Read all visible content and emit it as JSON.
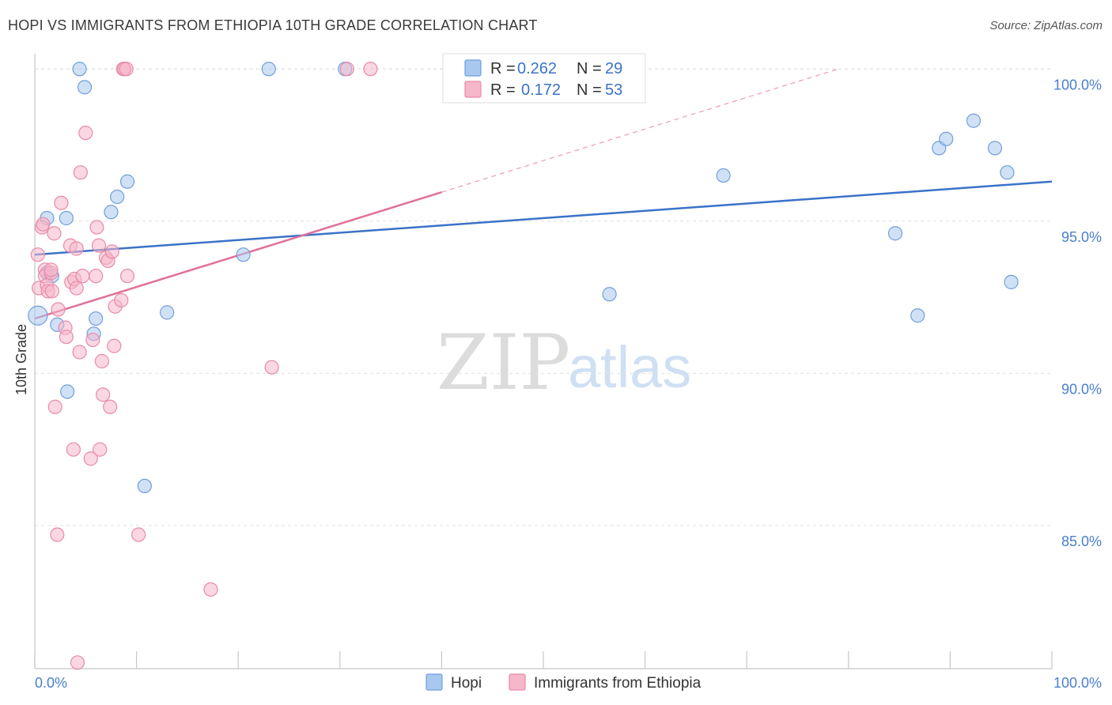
{
  "header": {
    "title": "HOPI VS IMMIGRANTS FROM ETHIOPIA 10TH GRADE CORRELATION CHART",
    "source": "Source: ZipAtlas.com"
  },
  "watermark": {
    "zip": "ZIP",
    "atlas": "atlas"
  },
  "legend_box": {
    "rows": [
      {
        "r_label": "R =",
        "r_value": "0.262",
        "n_label": "N =",
        "n_value": "29",
        "color": "#a9c8ef",
        "stroke": "#6f9fdc"
      },
      {
        "r_label": "R =",
        "r_value": "0.172",
        "n_label": "N =",
        "n_value": "53",
        "color": "#f6b7cb",
        "stroke": "#e98aa8"
      }
    ]
  },
  "bottom_legend": [
    {
      "label": "Hopi",
      "color": "#a9c8ef",
      "stroke": "#6f9fdc"
    },
    {
      "label": "Immigrants from Ethiopia",
      "color": "#f6b7cb",
      "stroke": "#e98aa8"
    }
  ],
  "chart_data": {
    "type": "scatter",
    "title": "HOPI VS IMMIGRANTS FROM ETHIOPIA 10TH GRADE CORRELATION CHART",
    "xlabel": "",
    "ylabel": "10th Grade",
    "xlim": [
      0,
      100
    ],
    "ylim": [
      80.3,
      100.5
    ],
    "x_tick_labels": [
      "0.0%",
      "100.0%"
    ],
    "y_ticks": [
      85,
      90,
      95,
      100
    ],
    "y_tick_labels": [
      "85.0%",
      "90.0%",
      "95.0%",
      "100.0%"
    ],
    "series": [
      {
        "name": "Hopi",
        "color": "#6f9fdc",
        "fill": "#a9c8ef",
        "line_color": "#3a72c8",
        "trend": {
          "x0": 0,
          "y0": 93.9,
          "x1": 100,
          "y1": 96.3,
          "solid_until": 100
        },
        "points": [
          [
            0.3,
            91.9
          ],
          [
            1.2,
            93.3
          ],
          [
            1.2,
            95.1
          ],
          [
            1.7,
            93.2
          ],
          [
            2.2,
            91.6
          ],
          [
            3.1,
            95.1
          ],
          [
            3.2,
            89.4
          ],
          [
            4.4,
            100.0
          ],
          [
            4.9,
            99.4
          ],
          [
            5.8,
            91.3
          ],
          [
            6.0,
            91.8
          ],
          [
            7.5,
            95.3
          ],
          [
            8.1,
            95.8
          ],
          [
            9.1,
            96.3
          ],
          [
            10.8,
            86.3
          ],
          [
            13.0,
            92.0
          ],
          [
            20.5,
            93.9
          ],
          [
            23.0,
            100.0
          ],
          [
            30.5,
            100.0
          ],
          [
            56.5,
            92.6
          ],
          [
            67.7,
            96.5
          ],
          [
            84.6,
            94.6
          ],
          [
            86.8,
            91.9
          ],
          [
            88.9,
            97.4
          ],
          [
            89.6,
            97.7
          ],
          [
            92.3,
            98.3
          ],
          [
            94.4,
            97.4
          ],
          [
            95.6,
            96.6
          ],
          [
            96.0,
            93.0
          ]
        ]
      },
      {
        "name": "Immigrants from Ethiopia",
        "color": "#e98aa8",
        "fill": "#f6b7cb",
        "line_color": "#e0709a",
        "trend": {
          "x0": 0,
          "y0": 91.8,
          "x1": 79.0,
          "y1": 100.0,
          "solid_until": 40.0
        },
        "points": [
          [
            0.3,
            93.9
          ],
          [
            0.4,
            92.8
          ],
          [
            0.7,
            94.8
          ],
          [
            0.8,
            94.9
          ],
          [
            1.0,
            93.4
          ],
          [
            1.0,
            93.2
          ],
          [
            1.2,
            92.9
          ],
          [
            1.3,
            92.7
          ],
          [
            1.6,
            93.3
          ],
          [
            1.7,
            92.7
          ],
          [
            1.9,
            94.6
          ],
          [
            2.0,
            88.9
          ],
          [
            2.2,
            84.7
          ],
          [
            2.3,
            92.1
          ],
          [
            2.6,
            95.6
          ],
          [
            3.0,
            91.5
          ],
          [
            3.1,
            91.2
          ],
          [
            3.5,
            94.2
          ],
          [
            3.6,
            93.0
          ],
          [
            3.8,
            87.5
          ],
          [
            3.9,
            93.1
          ],
          [
            4.1,
            94.1
          ],
          [
            4.1,
            92.8
          ],
          [
            4.2,
            80.5
          ],
          [
            4.4,
            90.7
          ],
          [
            4.5,
            96.6
          ],
          [
            4.7,
            93.2
          ],
          [
            5.0,
            97.9
          ],
          [
            5.5,
            87.2
          ],
          [
            5.7,
            91.1
          ],
          [
            6.0,
            93.2
          ],
          [
            6.1,
            94.8
          ],
          [
            6.3,
            94.2
          ],
          [
            6.4,
            87.5
          ],
          [
            6.6,
            90.4
          ],
          [
            6.7,
            89.3
          ],
          [
            7.0,
            93.8
          ],
          [
            7.2,
            93.7
          ],
          [
            7.4,
            88.9
          ],
          [
            7.6,
            94.0
          ],
          [
            7.8,
            90.9
          ],
          [
            7.9,
            92.2
          ],
          [
            8.5,
            92.4
          ],
          [
            8.7,
            100.0
          ],
          [
            8.8,
            100.0
          ],
          [
            9.0,
            100.0
          ],
          [
            9.1,
            93.2
          ],
          [
            10.2,
            84.7
          ],
          [
            17.3,
            82.9
          ],
          [
            23.3,
            90.2
          ],
          [
            30.7,
            100.0
          ],
          [
            33.0,
            100.0
          ],
          [
            1.6,
            93.4
          ]
        ]
      }
    ]
  }
}
